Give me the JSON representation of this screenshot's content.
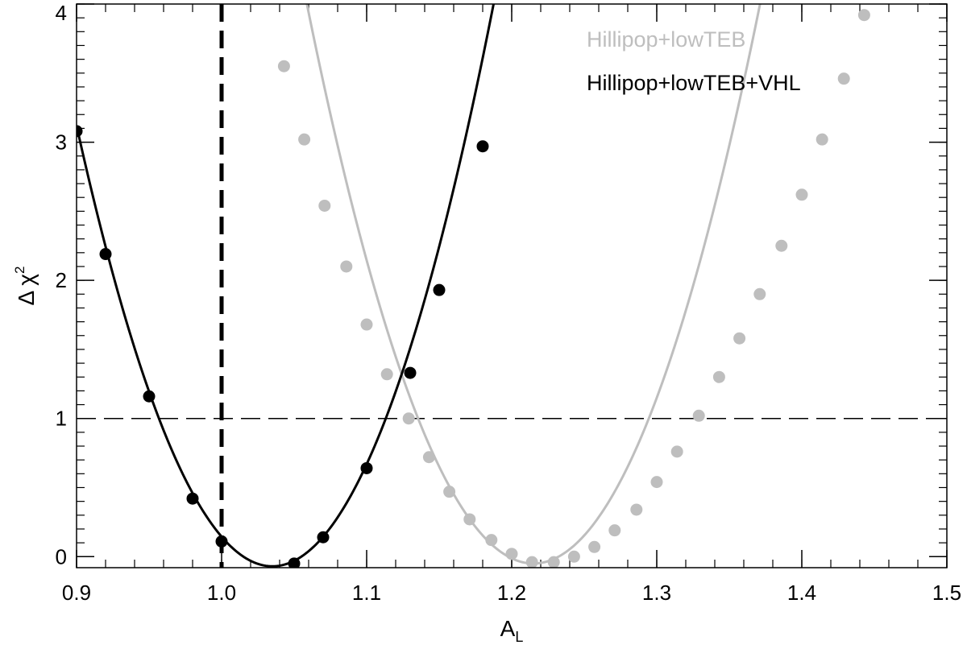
{
  "chart_data": {
    "type": "line",
    "xlabel": {
      "main": "A",
      "sub": "L"
    },
    "ylabel": {
      "delta": "Δ",
      "chi": "χ",
      "sup": "2"
    },
    "xlim": [
      0.9,
      1.5
    ],
    "ylim": [
      -0.08,
      4.0
    ],
    "xticks": [
      0.9,
      1.0,
      1.1,
      1.2,
      1.3,
      1.4,
      1.5
    ],
    "xtick_labels": [
      "0.9",
      "1.0",
      "1.1",
      "1.2",
      "1.3",
      "1.4",
      "1.5"
    ],
    "yticks": [
      0,
      1,
      2,
      3,
      4
    ],
    "ytick_labels": [
      "0",
      "1",
      "2",
      "3",
      "4"
    ],
    "x_minor_step": 0.02,
    "y_minor_step": 0.1,
    "grid": false,
    "legend_position": "top-right",
    "reference_lines": [
      {
        "orientation": "vertical",
        "x": 1.0,
        "style": "thick-dashed",
        "color": "#000000"
      },
      {
        "orientation": "horizontal",
        "y": 1.0,
        "style": "dashed",
        "color": "#000000"
      }
    ],
    "series": [
      {
        "name": "Hillipop+lowTEB",
        "color": "#bebebe",
        "curve": {
          "x0": 1.215,
          "a": 166.0,
          "min": -0.05
        },
        "points": [
          {
            "x": 1.043,
            "y": 3.55
          },
          {
            "x": 1.057,
            "y": 3.02
          },
          {
            "x": 1.071,
            "y": 2.54
          },
          {
            "x": 1.086,
            "y": 2.1
          },
          {
            "x": 1.1,
            "y": 1.68
          },
          {
            "x": 1.114,
            "y": 1.32
          },
          {
            "x": 1.129,
            "y": 1.0
          },
          {
            "x": 1.143,
            "y": 0.72
          },
          {
            "x": 1.157,
            "y": 0.47
          },
          {
            "x": 1.171,
            "y": 0.27
          },
          {
            "x": 1.186,
            "y": 0.12
          },
          {
            "x": 1.2,
            "y": 0.02
          },
          {
            "x": 1.214,
            "y": -0.04
          },
          {
            "x": 1.229,
            "y": -0.04
          },
          {
            "x": 1.243,
            "y": 0.0
          },
          {
            "x": 1.257,
            "y": 0.07
          },
          {
            "x": 1.271,
            "y": 0.19
          },
          {
            "x": 1.286,
            "y": 0.34
          },
          {
            "x": 1.3,
            "y": 0.54
          },
          {
            "x": 1.314,
            "y": 0.76
          },
          {
            "x": 1.329,
            "y": 1.02
          },
          {
            "x": 1.343,
            "y": 1.3
          },
          {
            "x": 1.357,
            "y": 1.58
          },
          {
            "x": 1.371,
            "y": 1.9
          },
          {
            "x": 1.386,
            "y": 2.25
          },
          {
            "x": 1.4,
            "y": 2.62
          },
          {
            "x": 1.414,
            "y": 3.02
          },
          {
            "x": 1.429,
            "y": 3.46
          },
          {
            "x": 1.443,
            "y": 3.92
          }
        ]
      },
      {
        "name": "Hillipop+lowTEB+VHL",
        "color": "#000000",
        "curve": {
          "x0": 1.035,
          "a": 175.0,
          "min": -0.07
        },
        "points": [
          {
            "x": 0.9,
            "y": 3.08
          },
          {
            "x": 0.92,
            "y": 2.19
          },
          {
            "x": 0.95,
            "y": 1.16
          },
          {
            "x": 0.98,
            "y": 0.42
          },
          {
            "x": 1.0,
            "y": 0.11
          },
          {
            "x": 1.05,
            "y": -0.05
          },
          {
            "x": 1.07,
            "y": 0.14
          },
          {
            "x": 1.1,
            "y": 0.64
          },
          {
            "x": 1.13,
            "y": 1.33
          },
          {
            "x": 1.15,
            "y": 1.93
          },
          {
            "x": 1.18,
            "y": 2.97
          }
        ]
      }
    ]
  }
}
